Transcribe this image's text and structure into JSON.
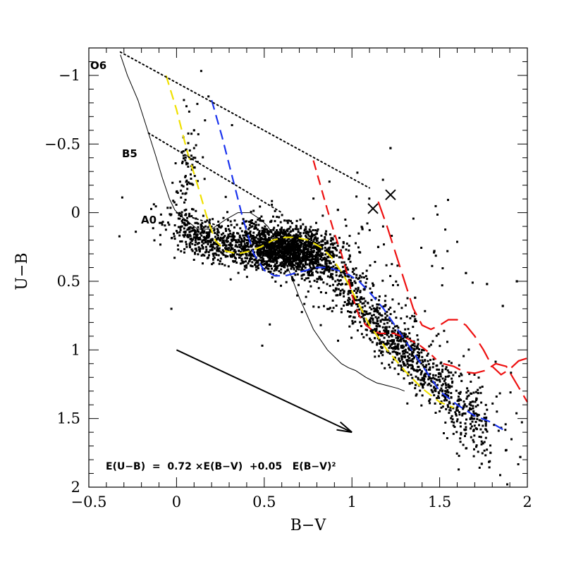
{
  "chart_data": {
    "type": "scatter",
    "xlabel": "B−V",
    "ylabel": "U−B",
    "xlim": [
      -0.5,
      2.0
    ],
    "ylim": [
      2.0,
      -1.2
    ],
    "y_inverted": true,
    "x_ticks": [
      -0.5,
      0,
      0.5,
      1,
      1.5,
      2
    ],
    "x_tick_labels": [
      "−0.5",
      "0",
      "0.5",
      "1",
      "1.5",
      "2"
    ],
    "y_ticks": [
      -1,
      -0.5,
      0,
      0.5,
      1,
      1.5,
      2
    ],
    "y_tick_labels": [
      "−1",
      "−0.5",
      "0",
      "0.5",
      "1",
      "1.5",
      "2"
    ],
    "grid": false,
    "spectral_labels": [
      {
        "text": "O6",
        "x": -0.45,
        "y": -1.17
      },
      {
        "text": "B5",
        "x": -0.31,
        "y": -0.5
      },
      {
        "text": "A0",
        "x": -0.2,
        "y": 0.02
      }
    ],
    "equation": "E(U−B)  =  0.72 ×E(B−V)  +0.05   E(B−V)²",
    "reddening_vector": {
      "from": [
        0.0,
        1.0
      ],
      "to": [
        1.0,
        1.6
      ]
    },
    "cross_markers": [
      {
        "x": 1.12,
        "y": -0.03
      },
      {
        "x": 1.22,
        "y": -0.13
      }
    ],
    "curves": [
      {
        "style": "solid",
        "color": "#000000",
        "x": [
          -0.32,
          -0.28,
          -0.22,
          -0.17,
          -0.12,
          -0.08,
          -0.04,
          -0.01,
          0.02,
          0.06,
          0.12,
          0.2,
          0.28,
          0.35,
          0.42,
          0.48,
          0.52,
          0.56,
          0.6,
          0.65,
          0.7,
          0.78,
          0.86,
          0.94,
          0.98,
          1.02,
          1.08,
          1.14,
          1.2,
          1.26,
          1.3
        ],
        "y": [
          -1.15,
          -1.0,
          -0.82,
          -0.62,
          -0.42,
          -0.25,
          -0.1,
          -0.02,
          0.02,
          0.06,
          0.12,
          0.12,
          0.05,
          0.0,
          0.0,
          0.05,
          0.1,
          0.18,
          0.3,
          0.45,
          0.62,
          0.85,
          1.0,
          1.1,
          1.13,
          1.15,
          1.2,
          1.24,
          1.26,
          1.28,
          1.3
        ]
      },
      {
        "style": "dashed",
        "color": "#f0e000",
        "x": [
          -0.06,
          0.0,
          0.06,
          0.12,
          0.17,
          0.22,
          0.28,
          0.35,
          0.42,
          0.48,
          0.55,
          0.62,
          0.68,
          0.75,
          0.82,
          0.88,
          0.95,
          1.02,
          1.1,
          1.2,
          1.3,
          1.4,
          1.5,
          1.58
        ],
        "y": [
          -1.0,
          -0.75,
          -0.45,
          -0.2,
          0.02,
          0.2,
          0.28,
          0.3,
          0.28,
          0.25,
          0.2,
          0.18,
          0.18,
          0.2,
          0.25,
          0.32,
          0.45,
          0.62,
          0.82,
          1.0,
          1.15,
          1.28,
          1.38,
          1.42
        ]
      },
      {
        "style": "dashed",
        "color": "#1a33ee",
        "x": [
          0.2,
          0.26,
          0.32,
          0.38,
          0.44,
          0.5,
          0.56,
          0.62,
          0.68,
          0.74,
          0.8,
          0.86,
          0.92,
          0.98,
          1.04,
          1.1,
          1.18,
          1.26,
          1.34,
          1.42,
          1.5,
          1.6,
          1.7,
          1.78,
          1.86
        ],
        "y": [
          -0.82,
          -0.55,
          -0.25,
          0.05,
          0.3,
          0.42,
          0.46,
          0.46,
          0.44,
          0.42,
          0.4,
          0.4,
          0.42,
          0.45,
          0.5,
          0.58,
          0.7,
          0.85,
          1.0,
          1.15,
          1.3,
          1.4,
          1.48,
          1.52,
          1.58
        ]
      },
      {
        "style": "dashed",
        "color": "#ee1111",
        "x": [
          0.78,
          0.82,
          0.86,
          0.9,
          0.94,
          0.98,
          1.0,
          1.04,
          1.08,
          1.12,
          1.16,
          1.2,
          1.24,
          1.28,
          1.32,
          1.38,
          1.44,
          1.48
        ],
        "y": [
          -0.38,
          -0.2,
          -0.02,
          0.15,
          0.3,
          0.48,
          0.6,
          0.75,
          0.82,
          0.86,
          0.88,
          0.88,
          0.88,
          0.9,
          0.92,
          0.96,
          1.02,
          1.07
        ]
      },
      {
        "style": "longdash",
        "color": "#ee1111",
        "x": [
          1.15,
          1.2,
          1.25,
          1.3,
          1.35,
          1.4,
          1.45,
          1.5,
          1.55,
          1.6,
          1.65,
          1.7,
          1.75,
          1.8,
          1.85,
          1.9,
          1.95,
          2.0
        ],
        "y": [
          -0.08,
          0.1,
          0.3,
          0.5,
          0.7,
          0.82,
          0.85,
          0.82,
          0.78,
          0.78,
          0.82,
          0.9,
          1.0,
          1.12,
          1.18,
          1.14,
          1.08,
          1.06
        ]
      },
      {
        "style": "longdash",
        "color": "#ee1111",
        "x": [
          1.52,
          1.58,
          1.64,
          1.7,
          1.76,
          1.82,
          1.88,
          1.94,
          2.0
        ],
        "y": [
          1.1,
          1.12,
          1.16,
          1.17,
          1.15,
          1.1,
          1.12,
          1.25,
          1.38
        ]
      }
    ],
    "dotted_lines": [
      {
        "x": [
          -0.32,
          1.1
        ],
        "y": [
          -1.17,
          -0.18
        ]
      },
      {
        "x": [
          -0.16,
          0.6
        ],
        "y": [
          -0.58,
          -0.0
        ]
      },
      {
        "x": [
          0.0,
          0.25
        ],
        "y": [
          0.0,
          0.1
        ]
      }
    ],
    "scatter_clusters": [
      {
        "count": 1300,
        "cx": 0.63,
        "cy": 0.25,
        "sx": 0.15,
        "sy": 0.08,
        "slope": 0.15
      },
      {
        "count": 550,
        "cx": 0.52,
        "cy": 0.3,
        "sx": 0.25,
        "sy": 0.08,
        "slope": 0.35
      },
      {
        "count": 260,
        "cx": 0.15,
        "cy": 0.2,
        "sx": 0.1,
        "sy": 0.07,
        "slope": 0.6
      },
      {
        "count": 90,
        "cx": 0.05,
        "cy": -0.25,
        "sx": 0.04,
        "sy": 0.2,
        "slope": -3.0
      },
      {
        "count": 650,
        "cx": 1.25,
        "cy": 0.95,
        "sx": 0.18,
        "sy": 0.1,
        "slope": 1.25
      },
      {
        "count": 230,
        "cx": 1.65,
        "cy": 1.45,
        "sx": 0.1,
        "sy": 0.14,
        "slope": 1.0
      },
      {
        "count": 170,
        "cx": 1.0,
        "cy": 0.6,
        "sx": 0.4,
        "sy": 0.15,
        "slope": 0.7
      },
      {
        "count": 60,
        "cx": 1.1,
        "cy": 0.3,
        "sx": 0.35,
        "sy": 0.35,
        "slope": 0.0
      }
    ],
    "scatter_isolated": [
      {
        "x": 1.22,
        "y": -0.47
      },
      {
        "x": 1.47,
        "y": 0.28
      },
      {
        "x": 1.65,
        "y": 0.44
      },
      {
        "x": 1.77,
        "y": 0.52
      },
      {
        "x": 1.86,
        "y": 0.68
      },
      {
        "x": 1.94,
        "y": 0.5
      },
      {
        "x": 1.88,
        "y": 1.73
      },
      {
        "x": 1.96,
        "y": 1.78
      },
      {
        "x": 1.79,
        "y": 1.75
      },
      {
        "x": 1.74,
        "y": 1.83
      },
      {
        "x": 1.06,
        "y": 0.12
      },
      {
        "x": 1.15,
        "y": 0.25
      },
      {
        "x": 1.36,
        "y": 0.62
      },
      {
        "x": 0.92,
        "y": -0.02
      },
      {
        "x": 0.1,
        "y": -0.6
      }
    ]
  }
}
